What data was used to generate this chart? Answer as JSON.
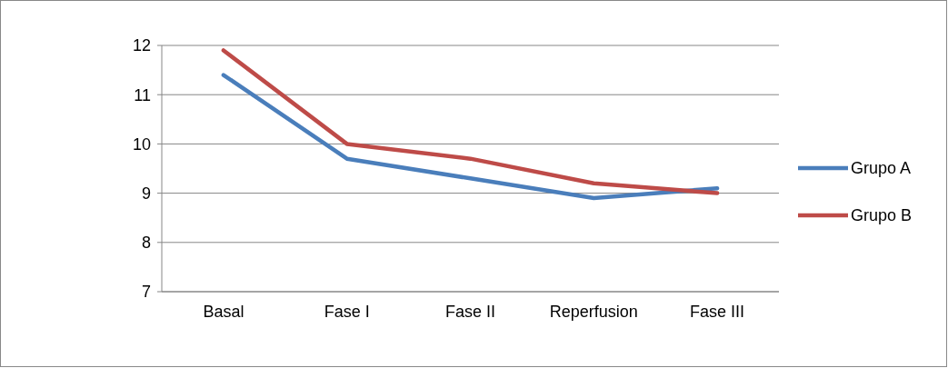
{
  "chart_data": {
    "type": "line",
    "categories": [
      "Basal",
      "Fase I",
      "Fase II",
      "Reperfusion",
      "Fase III"
    ],
    "series": [
      {
        "name": "Grupo A",
        "color": "#4a7ebb",
        "values": [
          11.4,
          9.7,
          9.3,
          8.9,
          9.1
        ]
      },
      {
        "name": "Grupo B",
        "color": "#be4b48",
        "values": [
          11.9,
          10.0,
          9.7,
          9.2,
          9.0
        ]
      }
    ],
    "ylim": [
      7,
      12
    ],
    "yticks": [
      7,
      8,
      9,
      10,
      11,
      12
    ],
    "grid": "y",
    "legend": "right",
    "marker": "none",
    "line_style": "solid"
  }
}
